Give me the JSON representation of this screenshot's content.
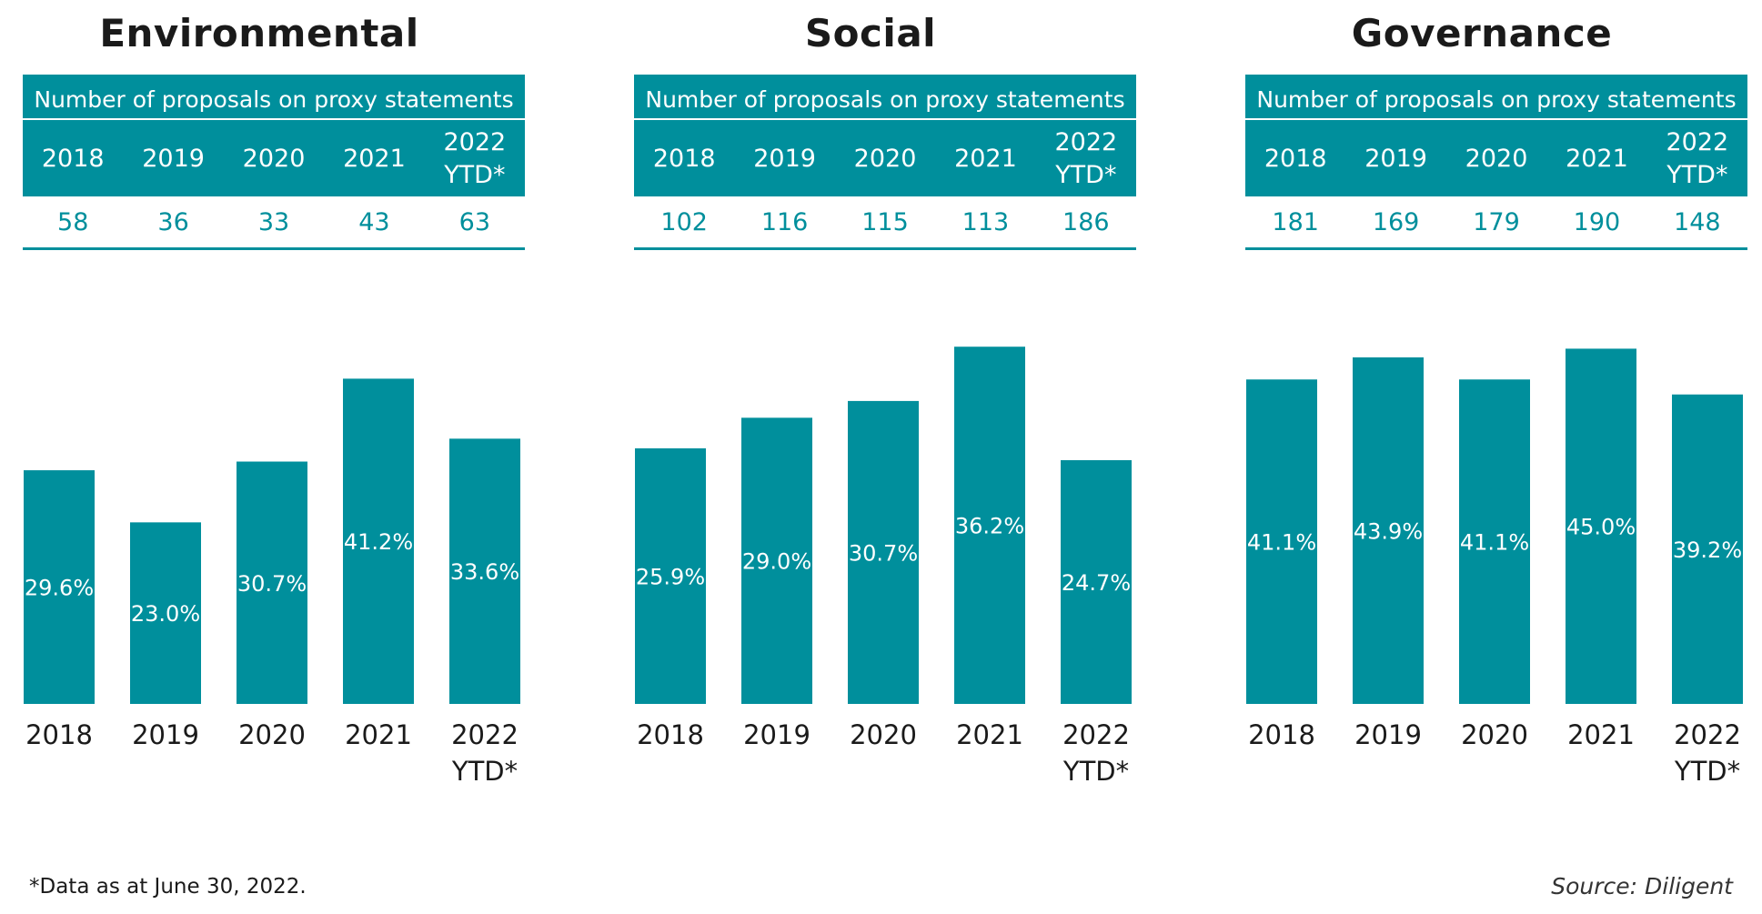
{
  "table_caption": "Number of proposals on proxy statements",
  "footnote": "*Data as at June 30, 2022.",
  "source": "Source: Diligent",
  "colors": {
    "accent": "#008f9c",
    "bar_label": "#ffffff",
    "text": "#1a1a1a"
  },
  "chart_data": [
    {
      "type": "bar",
      "title": "Environmental",
      "categories": [
        "2018",
        "2019",
        "2020",
        "2021",
        "2022\nYTD*"
      ],
      "proposals": [
        "58",
        "36",
        "33",
        "43",
        "63"
      ],
      "values": [
        29.6,
        23.0,
        30.7,
        41.2,
        33.6
      ],
      "value_labels": [
        "29.6%",
        "23.0%",
        "30.7%",
        "41.2%",
        "33.6%"
      ],
      "ylim": [
        0,
        50
      ]
    },
    {
      "type": "bar",
      "title": "Social",
      "categories": [
        "2018",
        "2019",
        "2020",
        "2021",
        "2022\nYTD*"
      ],
      "proposals": [
        "102",
        "116",
        "115",
        "113",
        "186"
      ],
      "values": [
        25.9,
        29.0,
        30.7,
        36.2,
        24.7
      ],
      "value_labels": [
        "25.9%",
        "29.0%",
        "30.7%",
        "36.2%",
        "24.7%"
      ],
      "ylim": [
        0,
        40
      ]
    },
    {
      "type": "bar",
      "title": "Governance",
      "categories": [
        "2018",
        "2019",
        "2020",
        "2021",
        "2022\nYTD*"
      ],
      "proposals": [
        "181",
        "169",
        "179",
        "190",
        "148"
      ],
      "values": [
        41.1,
        43.9,
        41.1,
        45.0,
        39.2
      ],
      "value_labels": [
        "41.1%",
        "43.9%",
        "41.1%",
        "45.0%",
        "39.2%"
      ],
      "ylim": [
        0,
        50
      ]
    }
  ]
}
